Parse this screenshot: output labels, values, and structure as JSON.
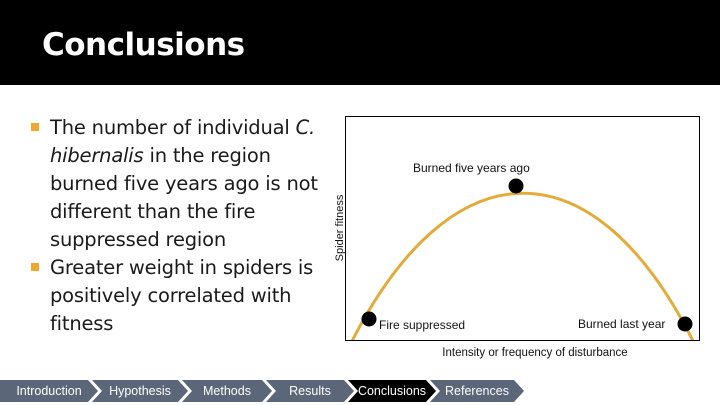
{
  "slide": {
    "title": "Conclusions"
  },
  "bullets": [
    {
      "before": "The number of individual ",
      "italic": "C. hibernalis",
      "after": " in the region burned five years ago is not different than the fire suppressed region"
    },
    {
      "before": "Greater weight in spiders is positively correlated with fitness",
      "italic": "",
      "after": ""
    }
  ],
  "chart_data": {
    "type": "line",
    "title": "",
    "xlabel": "Intensity or frequency of disturbance",
    "ylabel": "Spider fitness",
    "curve_color": "#e3ac3a",
    "points": [
      {
        "label": "Fire suppressed",
        "position": "low disturbance, low fitness"
      },
      {
        "label": "Burned five years ago",
        "position": "intermediate disturbance, peak fitness"
      },
      {
        "label": "Burned last year",
        "position": "high disturbance, low fitness"
      }
    ]
  },
  "nav": {
    "items": [
      "Introduction",
      "Hypothesis",
      "Methods",
      "Results",
      "Conclusions",
      "References"
    ],
    "active_index": 4,
    "colors": {
      "normal": "#5b6679",
      "active": "#000000"
    }
  }
}
